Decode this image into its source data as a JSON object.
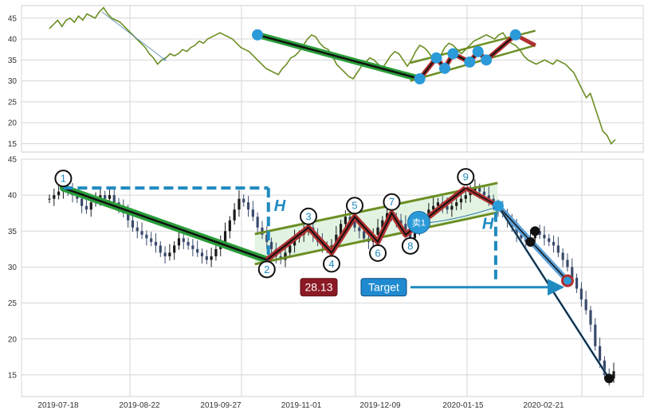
{
  "chart_data": [
    {
      "type": "line",
      "panel": "overview",
      "title": "",
      "xlabel": "",
      "ylabel": "",
      "ylim": [
        13,
        48
      ],
      "yticks": [
        15,
        20,
        25,
        30,
        35,
        40,
        45
      ],
      "grid": true,
      "colors": {
        "price": "#6b8e23",
        "downtrend": "#2a9d3a",
        "pattern": "#b03030",
        "channel": "#6b8e23",
        "marker": "#2b9ad8"
      },
      "series": [
        {
          "values": [
            42.5,
            43.5,
            44.5,
            43,
            44.5,
            45,
            44,
            45.5,
            44.5,
            46,
            45.5,
            45,
            46.5,
            47.5,
            46,
            45,
            44.5,
            44,
            43,
            42,
            41,
            40,
            39,
            38,
            36.5,
            35.5,
            34,
            35,
            35.5,
            36.5,
            36,
            36.5,
            37.5,
            37,
            38,
            38.5,
            39.5,
            39,
            40,
            40.5,
            41,
            41.5,
            41,
            40.5,
            40,
            39,
            38,
            37.5,
            37,
            36,
            35,
            34,
            33,
            32.5,
            32,
            31.5,
            33,
            34,
            35.5,
            36,
            37,
            38.5,
            40,
            41,
            40.5,
            39,
            38,
            37.5,
            36,
            34,
            33,
            32,
            31,
            30.5,
            32,
            33.5,
            34.5,
            35.5,
            35,
            34,
            33,
            34.5,
            36,
            37,
            36.5,
            35,
            33.5,
            35,
            37,
            38.5,
            38,
            37,
            35.5,
            34.5,
            36,
            38,
            39,
            38.5,
            37.5,
            36.5,
            37.5,
            38.5,
            39.5,
            40,
            40.5,
            41,
            40.5,
            40,
            41,
            41.5,
            40,
            39,
            38.5,
            37.5,
            36,
            35,
            34.5,
            34,
            34.5,
            35,
            34.5,
            34,
            35,
            34.5,
            34,
            33,
            32,
            30,
            28,
            26,
            27,
            24,
            21,
            18,
            17,
            15,
            16
          ]
        }
      ],
      "markers": [
        41,
        30.5,
        35.5,
        33,
        36.5,
        34.5,
        37,
        35,
        41
      ]
    },
    {
      "type": "candlestick",
      "panel": "main",
      "title": "",
      "xlabel": "",
      "ylabel": "",
      "ylim": [
        12,
        45
      ],
      "yticks": [
        15,
        20,
        25,
        30,
        35,
        40,
        45
      ],
      "xticks": [
        "2019-07-18",
        "2019-08-22",
        "2019-09-27",
        "2019-11-01",
        "2019-12-09",
        "2020-01-15",
        "2020-02-21"
      ],
      "grid": true,
      "closes": [
        39.5,
        40,
        40.5,
        41,
        40.5,
        40,
        39.5,
        38.5,
        38,
        39,
        39.5,
        40,
        39.5,
        40,
        39,
        38.5,
        37.5,
        36.5,
        35.5,
        35,
        34.5,
        34,
        33.5,
        33,
        32,
        31.5,
        32,
        33,
        34,
        33.5,
        33,
        32.5,
        32,
        31.5,
        31,
        31.5,
        32.5,
        33.5,
        35,
        36.5,
        38,
        39.5,
        39,
        38,
        37,
        35.5,
        34.5,
        33.5,
        32.5,
        31.5,
        31,
        32,
        33,
        34,
        34.5,
        35,
        35.5,
        34.5,
        33.5,
        33,
        32.5,
        33,
        34.5,
        36,
        37,
        36.5,
        35.5,
        35,
        34,
        33.5,
        34.5,
        35.5,
        36.5,
        37.5,
        37,
        36.5,
        36,
        35,
        34,
        35,
        36,
        37,
        38,
        38.5,
        39,
        38.5,
        38,
        38.5,
        39,
        39.5,
        40,
        40.5,
        41,
        40.5,
        40,
        39.5,
        38.5,
        38,
        37.5,
        36.5,
        35.5,
        34.5,
        34,
        33.5,
        34,
        35,
        34.5,
        34,
        33.5,
        33,
        32,
        31,
        30,
        28.5,
        27,
        25.5,
        24,
        22,
        19,
        17,
        15,
        14.5,
        15.5
      ],
      "points": [
        {
          "label": "1",
          "value": 41
        },
        {
          "label": "2",
          "value": 31
        },
        {
          "label": "3",
          "value": 35.5
        },
        {
          "label": "4",
          "value": 32
        },
        {
          "label": "5",
          "value": 37
        },
        {
          "label": "6",
          "value": 33.5
        },
        {
          "label": "7",
          "value": 37.5
        },
        {
          "label": "8",
          "value": 34.5
        },
        {
          "label": "9",
          "value": 41
        }
      ],
      "signal": {
        "label": "卖1",
        "value": 36.2
      },
      "breakout": 38.5,
      "target": 28.1,
      "stop_low": 14.5,
      "annotations": {
        "pattern_height": "H",
        "breakout_height": "H",
        "price_box": "28.13",
        "target_box": "Target"
      },
      "colors": {
        "up": "#1a1a1a",
        "down": "#3a4a6b",
        "downtrend": "#2a9d3a",
        "pattern": "#b03030",
        "channel": "#6b8e23",
        "fill": "#dff2df",
        "dashed": "#1f8ac0",
        "price_box": "#8b1a24",
        "target_box": "#1f8ad0",
        "signal": "#2b9ad8"
      }
    }
  ]
}
